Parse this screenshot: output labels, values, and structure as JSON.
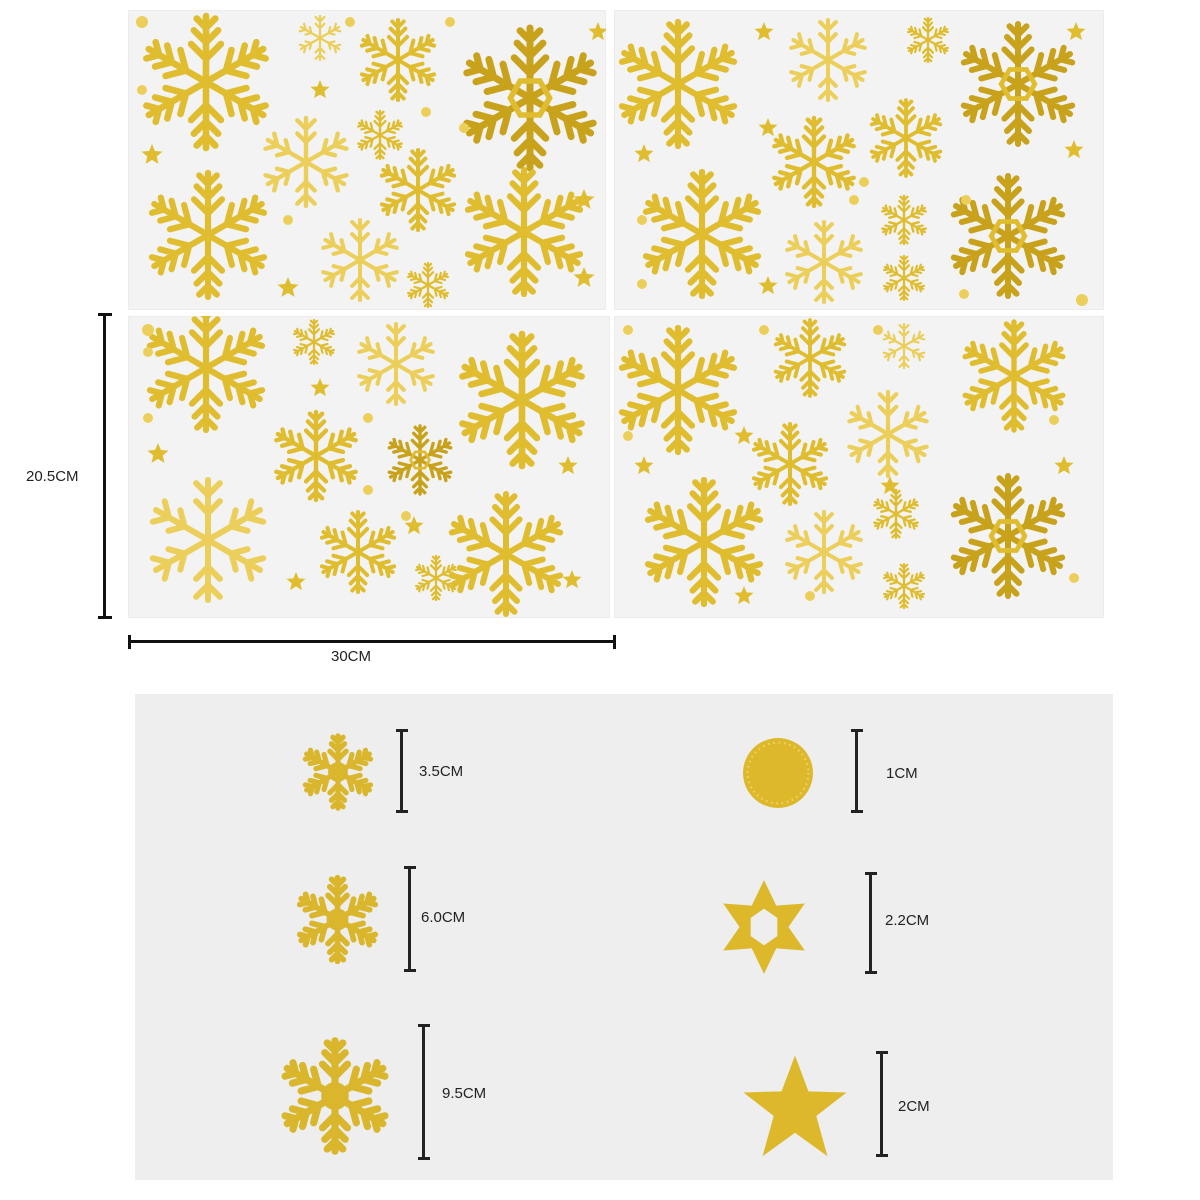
{
  "dimensions": {
    "height_label": "20.5CM",
    "width_label": "30CM"
  },
  "colors": {
    "gold": "#e0bd2f",
    "gold_light": "#eccf5a",
    "gold_dark": "#c9a21c",
    "sheet_bg": "#f3f3f3",
    "legend_bg": "#eeeeee"
  },
  "sheets": [
    "sticker-sheet-1",
    "sticker-sheet-2",
    "sticker-sheet-3",
    "sticker-sheet-4"
  ],
  "legend": {
    "items": [
      {
        "shape": "snowflake-small-icon",
        "size": "3.5CM"
      },
      {
        "shape": "snowflake-medium-icon",
        "size": "6.0CM"
      },
      {
        "shape": "snowflake-large-icon",
        "size": "9.5CM"
      },
      {
        "shape": "dot-icon",
        "size": "1CM"
      },
      {
        "shape": "hexagram-star-icon",
        "size": "2.2CM"
      },
      {
        "shape": "five-point-star-icon",
        "size": "2CM"
      }
    ]
  }
}
